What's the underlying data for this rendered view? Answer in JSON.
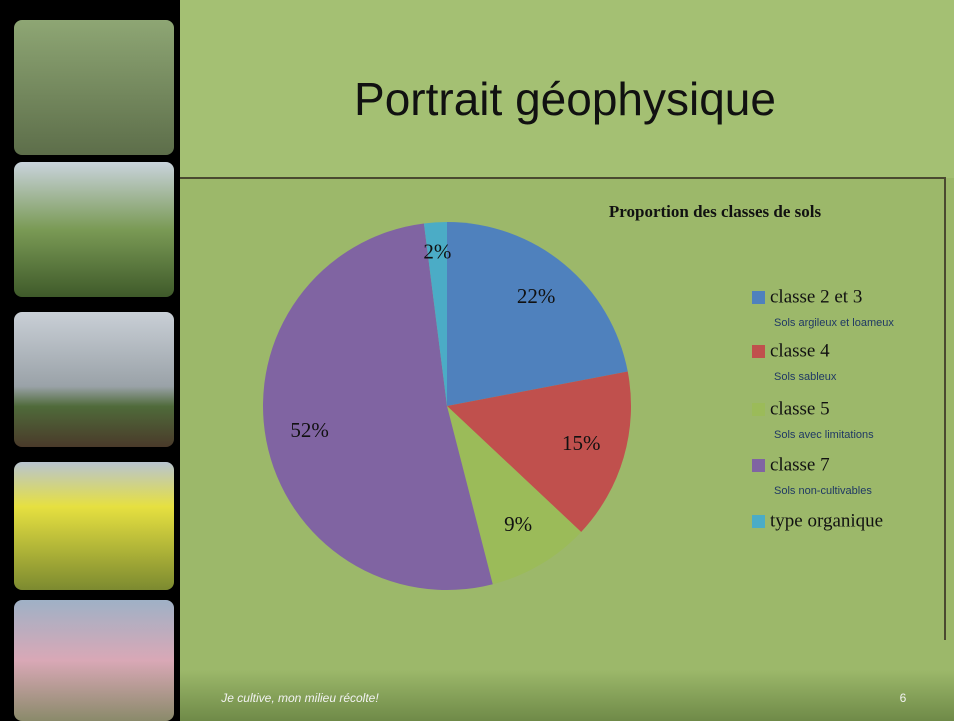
{
  "slide_title": "Portrait géophysique",
  "footer": "Je cultive, mon milieu récolte!",
  "page_number": "6",
  "chart_data": {
    "type": "pie",
    "title": "Proportion des classes de sols",
    "categories": [
      "classe 2 et 3",
      "classe 4",
      "classe 5",
      "classe 7",
      "type organique"
    ],
    "descriptions": [
      "Sols argileux et loameux",
      "Sols sableux",
      "Sols avec limitations",
      "Sols non-cultivables",
      null
    ],
    "values": [
      22,
      15,
      9,
      52,
      2
    ],
    "value_labels": [
      "22%",
      "15%",
      "9%",
      "52%",
      "2%"
    ],
    "colors": [
      "#4f81bd",
      "#c0504d",
      "#9bbb59",
      "#8064a2",
      "#4bacc6"
    ],
    "legend": "right"
  }
}
